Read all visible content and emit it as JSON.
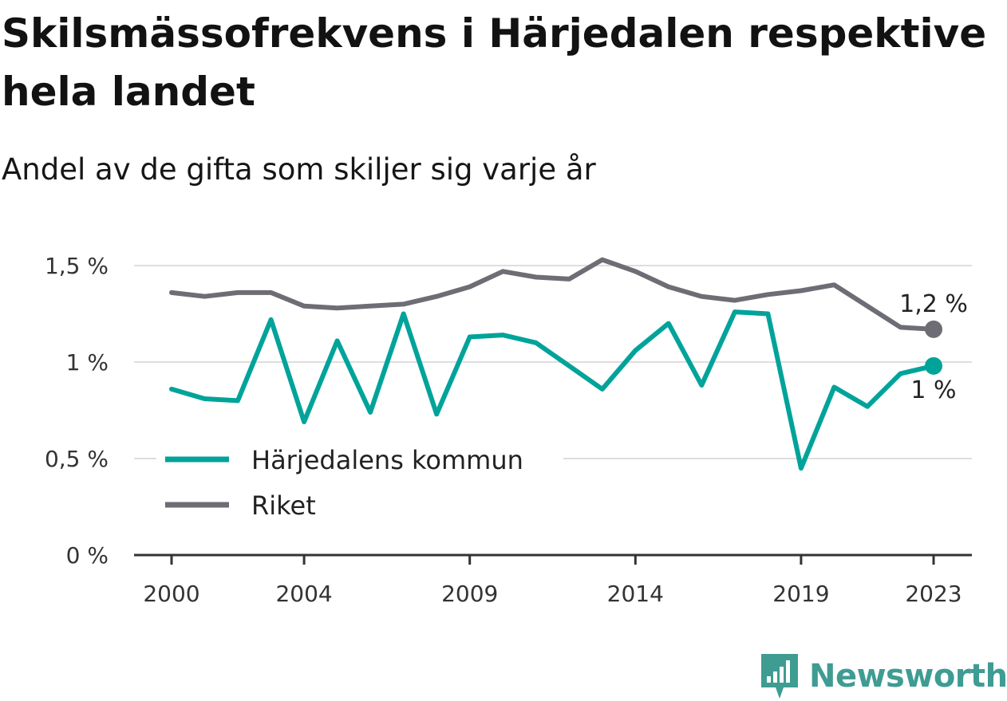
{
  "title": "Skilsmässofrekvens i Härjedalen respektive hela landet",
  "subtitle": "Andel av de gifta som skiljer sig varje år",
  "brand": {
    "name": "Newsworthy",
    "color": "#3e9c93",
    "icon": "newsworthy-logo-icon"
  },
  "chart_data": {
    "type": "line",
    "x": [
      2000,
      2001,
      2002,
      2003,
      2004,
      2005,
      2006,
      2007,
      2008,
      2009,
      2010,
      2011,
      2012,
      2013,
      2014,
      2015,
      2016,
      2017,
      2018,
      2019,
      2020,
      2021,
      2022,
      2023
    ],
    "x_ticks": [
      2000,
      2004,
      2009,
      2014,
      2019,
      2023
    ],
    "x_tick_labels": [
      "2000",
      "2004",
      "2009",
      "2014",
      "2019",
      "2023"
    ],
    "ylim": [
      0,
      1.5
    ],
    "y_ticks": [
      0,
      0.5,
      1,
      1.5
    ],
    "y_tick_labels": [
      "0 %",
      "0,5 %",
      "1 %",
      "1,5 %"
    ],
    "grid": true,
    "legend": "inside-lower-left",
    "series": [
      {
        "name": "Härjedalens kommun",
        "color": "#00a39a",
        "values": [
          0.86,
          0.81,
          0.8,
          1.22,
          0.69,
          1.11,
          0.74,
          1.25,
          0.73,
          1.13,
          1.14,
          1.1,
          0.98,
          0.86,
          1.06,
          1.2,
          0.88,
          1.26,
          1.25,
          0.45,
          0.87,
          0.77,
          0.94,
          0.98
        ],
        "end_label": "1 %"
      },
      {
        "name": "Riket",
        "color": "#6e6d75",
        "values": [
          1.36,
          1.34,
          1.36,
          1.36,
          1.29,
          1.28,
          1.29,
          1.3,
          1.34,
          1.39,
          1.47,
          1.44,
          1.43,
          1.53,
          1.47,
          1.39,
          1.34,
          1.32,
          1.35,
          1.37,
          1.4,
          1.29,
          1.18,
          1.17
        ],
        "end_label": "1,2 %"
      }
    ]
  }
}
